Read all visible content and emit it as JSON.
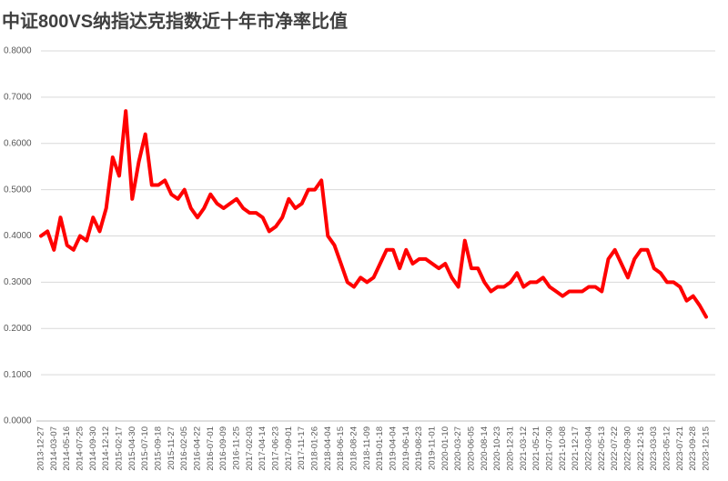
{
  "chart_data": {
    "type": "line",
    "title": "中证800VS纳指达克指数近十年市净率比值",
    "categories": [
      "2013-12-27",
      null,
      "2014-03-07",
      null,
      "2014-05-16",
      null,
      "2014-07-25",
      null,
      "2014-09-30",
      null,
      "2014-12-12",
      null,
      "2015-02-17",
      null,
      "2015-04-30",
      null,
      "2015-07-10",
      null,
      "2015-09-18",
      null,
      "2015-11-27",
      null,
      "2016-02-05",
      null,
      "2016-04-22",
      null,
      "2016-07-01",
      null,
      "2016-09-09",
      null,
      "2016-11-25",
      null,
      "2017-02-03",
      null,
      "2017-04-14",
      null,
      "2017-06-23",
      null,
      "2017-09-01",
      null,
      "2017-11-17",
      null,
      "2018-01-26",
      null,
      "2018-04-04",
      null,
      "2018-06-15",
      null,
      "2018-08-24",
      null,
      "2018-11-09",
      null,
      "2019-01-18",
      null,
      "2019-04-04",
      null,
      "2019-06-14",
      null,
      "2019-08-23",
      null,
      "2019-11-01",
      null,
      "2020-01-10",
      null,
      "2020-03-27",
      null,
      "2020-06-05",
      null,
      "2020-08-14",
      null,
      "2020-10-23",
      null,
      "2020-12-31",
      null,
      "2021-03-12",
      null,
      "2021-05-21",
      null,
      "2021-07-30",
      null,
      "2021-10-08",
      null,
      "2021-12-17",
      null,
      "2022-03-04",
      null,
      "2022-05-13",
      null,
      "2022-07-22",
      null,
      "2022-09-30",
      null,
      "2022-12-16",
      null,
      "2023-03-03",
      null,
      "2023-05-12",
      null,
      "2023-07-21",
      null,
      "2023-09-28",
      null,
      "2023-12-15"
    ],
    "series": [
      {
        "name": "市净率比值",
        "color": "#ff0000",
        "values": [
          0.4,
          0.41,
          0.37,
          0.44,
          0.38,
          0.37,
          0.4,
          0.39,
          0.44,
          0.41,
          0.46,
          0.57,
          0.53,
          0.67,
          0.48,
          0.56,
          0.62,
          0.51,
          0.51,
          0.52,
          0.49,
          0.48,
          0.5,
          0.46,
          0.44,
          0.46,
          0.49,
          0.47,
          0.46,
          0.47,
          0.48,
          0.46,
          0.45,
          0.45,
          0.44,
          0.41,
          0.42,
          0.44,
          0.48,
          0.46,
          0.47,
          0.5,
          0.5,
          0.52,
          0.4,
          0.38,
          0.34,
          0.3,
          0.29,
          0.31,
          0.3,
          0.31,
          0.34,
          0.37,
          0.37,
          0.33,
          0.37,
          0.34,
          0.35,
          0.35,
          0.34,
          0.33,
          0.34,
          0.31,
          0.29,
          0.39,
          0.33,
          0.33,
          0.3,
          0.28,
          0.29,
          0.29,
          0.3,
          0.32,
          0.29,
          0.3,
          0.3,
          0.31,
          0.29,
          0.28,
          0.27,
          0.28,
          0.28,
          0.28,
          0.29,
          0.29,
          0.28,
          0.35,
          0.37,
          0.34,
          0.31,
          0.35,
          0.37,
          0.37,
          0.33,
          0.32,
          0.3,
          0.3,
          0.29,
          0.26,
          0.27,
          0.25,
          0.225
        ]
      }
    ],
    "ylim": [
      0,
      0.8
    ],
    "yticks": [
      {
        "value": 0,
        "label": "0.0000"
      },
      {
        "value": 0.1,
        "label": "0.1000"
      },
      {
        "value": 0.2,
        "label": "0.2000"
      },
      {
        "value": 0.3,
        "label": "0.3000"
      },
      {
        "value": 0.4,
        "label": "0.4000"
      },
      {
        "value": 0.5,
        "label": "0.5000"
      },
      {
        "value": 0.6,
        "label": "0.6000"
      },
      {
        "value": 0.7,
        "label": "0.7000"
      },
      {
        "value": 0.8,
        "label": "0.8000"
      }
    ],
    "grid": true
  }
}
